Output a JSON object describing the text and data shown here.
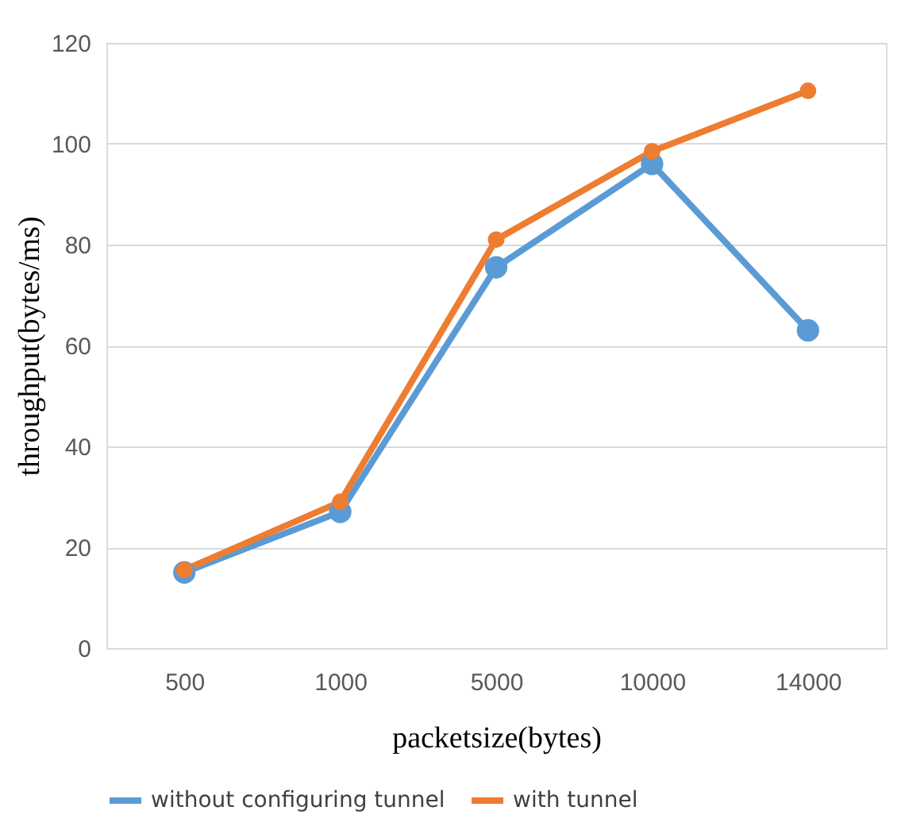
{
  "chart_data": {
    "type": "line",
    "xlabel": "packetsize(bytes)",
    "ylabel": "throughput(bytes/ms)",
    "categories": [
      "500",
      "1000",
      "5000",
      "10000",
      "14000"
    ],
    "series": [
      {
        "name": "without configuring tunnel",
        "color": "#5b9bd5",
        "values": [
          15,
          27,
          75.5,
          96,
          63
        ]
      },
      {
        "name": "with tunnel",
        "color": "#ed7d31",
        "values": [
          15.5,
          29,
          81,
          98.5,
          110.5
        ]
      }
    ],
    "ylim": [
      0,
      120
    ],
    "yticks": [
      0,
      20,
      40,
      60,
      80,
      100,
      120
    ],
    "grid": "y",
    "legend": "bottom",
    "marker": "circle",
    "line_style": "solid"
  }
}
